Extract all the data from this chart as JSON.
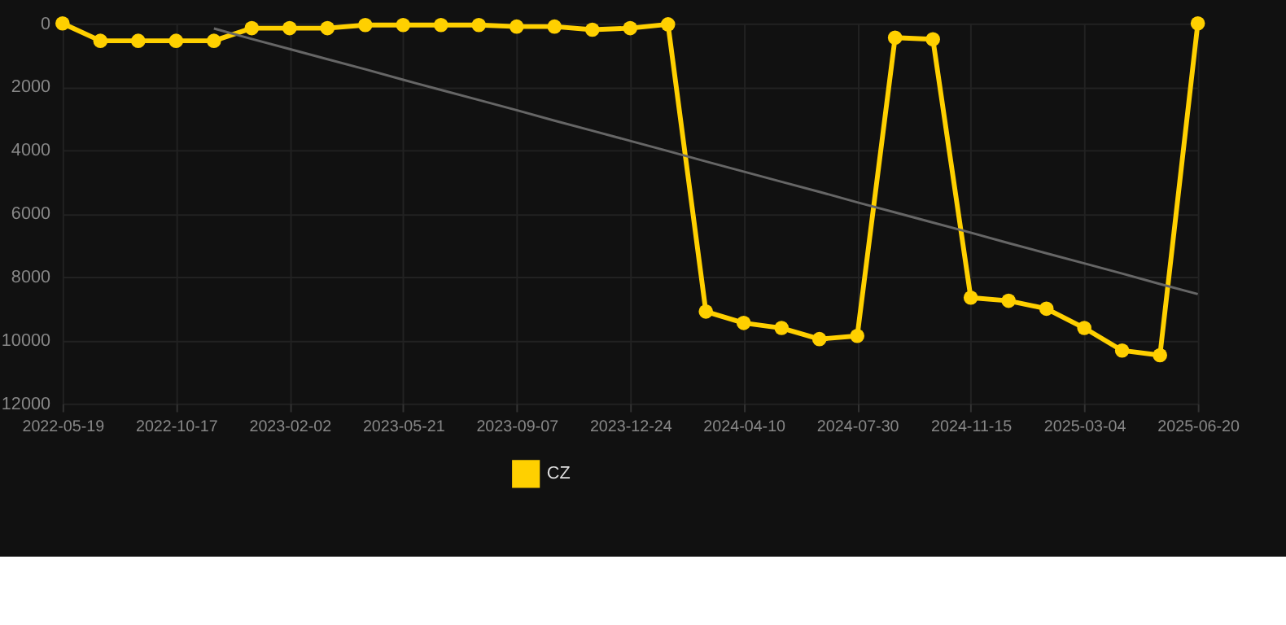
{
  "chart_data": {
    "type": "line",
    "categories": [
      "2022-05-19",
      null,
      null,
      "2022-10-17",
      null,
      null,
      "2023-02-02",
      null,
      null,
      "2023-05-21",
      null,
      null,
      "2023-09-07",
      null,
      null,
      "2023-12-24",
      null,
      null,
      "2024-04-10",
      null,
      null,
      "2024-07-30",
      null,
      null,
      "2024-11-15",
      null,
      null,
      "2025-03-04",
      null,
      null,
      "2025-06-20"
    ],
    "series": [
      {
        "name": "CZ",
        "color": "#ffd000",
        "marker": "circle",
        "values": [
          0,
          550,
          550,
          550,
          550,
          150,
          150,
          150,
          50,
          50,
          50,
          50,
          100,
          100,
          200,
          150,
          30,
          9100,
          9460,
          9620,
          9970,
          9870,
          450,
          500,
          8660,
          8760,
          9010,
          9620,
          10330,
          10480,
          0
        ]
      },
      {
        "type": "line",
        "color": "#666666",
        "marker": "none",
        "values": [
          null,
          null,
          null,
          null,
          160,
          490,
          810,
          1130,
          1450,
          1780,
          2100,
          2420,
          2740,
          3070,
          3390,
          3710,
          4030,
          4360,
          4680,
          5000,
          5320,
          5650,
          5970,
          6290,
          6610,
          6940,
          7260,
          7580,
          7900,
          8230,
          8550
        ]
      }
    ],
    "ylim": [
      12000,
      0
    ],
    "yticks": [
      0,
      2000,
      4000,
      6000,
      8000,
      10000,
      12000
    ],
    "grid": true,
    "legend": "bottom"
  }
}
